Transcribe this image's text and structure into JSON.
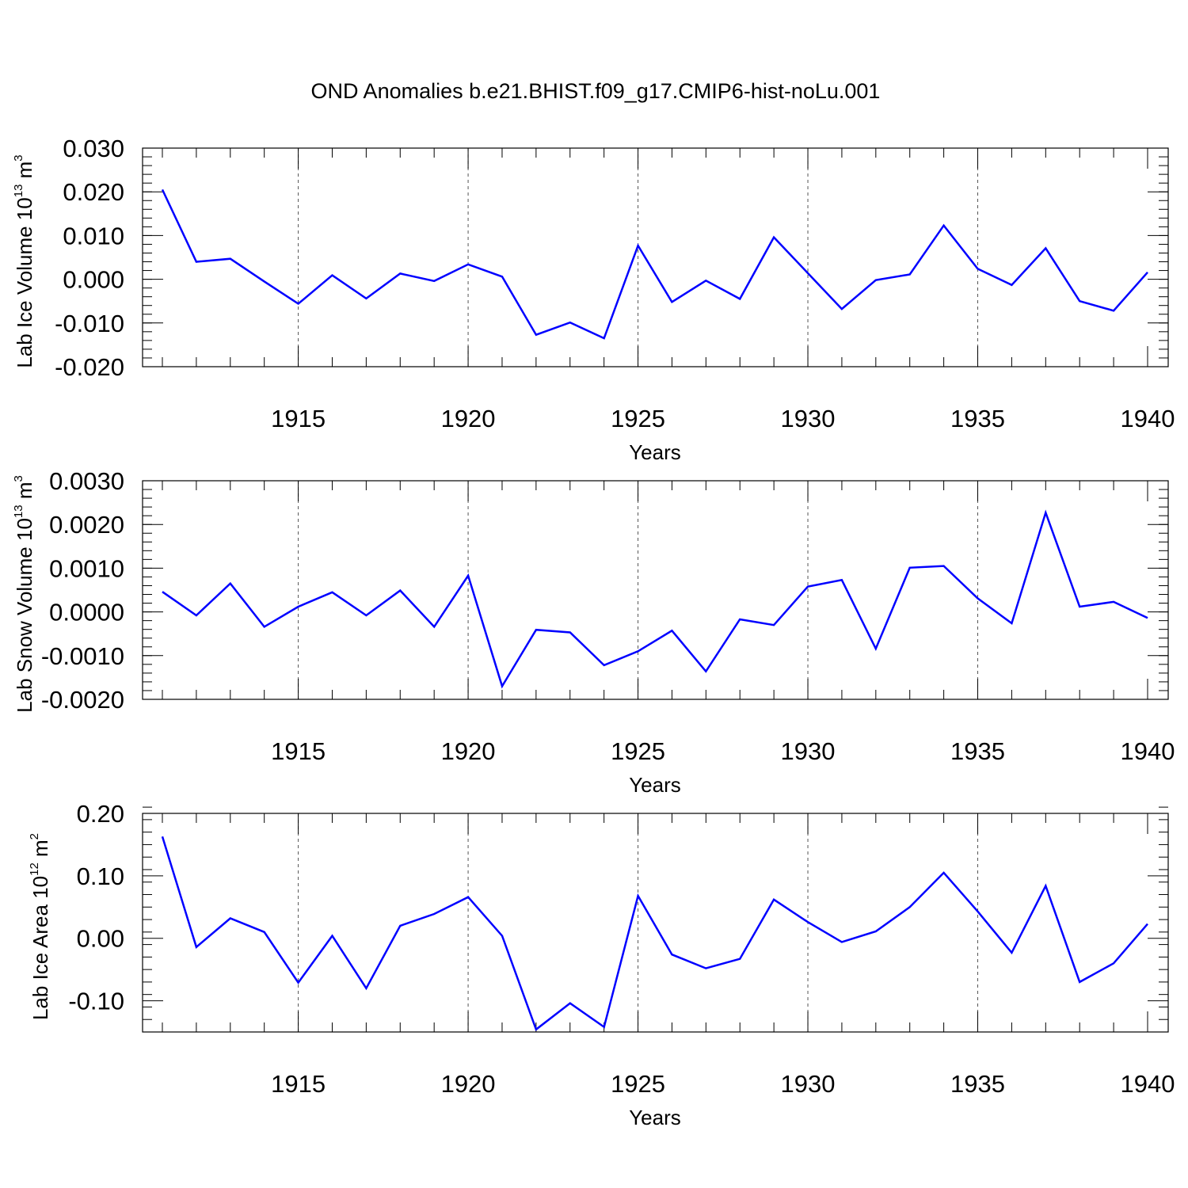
{
  "title": "OND Anomalies b.e21.BHIST.f09_g17.CMIP6-hist-noLu.001",
  "colors": {
    "series": "#0000ff",
    "grid": "#555555",
    "axis": "#000000"
  },
  "chart_data": [
    {
      "type": "line",
      "xlabel": "Years",
      "ylabel": {
        "prefix": "Lab Ice Volume 10",
        "exp": "13",
        "unit": " m",
        "unit_exp": "3"
      },
      "xlim": [
        1911,
        1940
      ],
      "ylim": [
        -0.02,
        0.03
      ],
      "x_ticks": [
        1915,
        1920,
        1925,
        1930,
        1935,
        1940
      ],
      "y_ticks": [
        -0.02,
        -0.01,
        0.0,
        0.01,
        0.02,
        0.03
      ],
      "y_tick_labels": [
        "-0.020",
        "-0.010",
        "0.000",
        "0.010",
        "0.020",
        "0.030"
      ],
      "y_minor_step": 0.002,
      "grid_x": true,
      "x": [
        1911,
        1912,
        1913,
        1914,
        1915,
        1916,
        1917,
        1918,
        1919,
        1920,
        1921,
        1922,
        1923,
        1924,
        1925,
        1926,
        1927,
        1928,
        1929,
        1930,
        1931,
        1932,
        1933,
        1934,
        1935,
        1936,
        1937,
        1938,
        1939,
        1940
      ],
      "values": [
        0.0205,
        0.004,
        0.0047,
        -0.0005,
        -0.0056,
        0.0009,
        -0.0044,
        0.0013,
        -0.0004,
        0.0034,
        0.0006,
        -0.0127,
        -0.0099,
        -0.0135,
        0.0077,
        -0.0052,
        -0.0003,
        -0.0045,
        0.0096,
        0.0014,
        -0.0068,
        -0.0002,
        0.0011,
        0.0123,
        0.0024,
        -0.0013,
        0.0071,
        -0.005,
        -0.0072,
        0.0016
      ]
    },
    {
      "type": "line",
      "xlabel": "Years",
      "ylabel": {
        "prefix": "Lab Snow Volume 10",
        "exp": "13",
        "unit": " m",
        "unit_exp": "3"
      },
      "xlim": [
        1911,
        1940
      ],
      "ylim": [
        -0.002,
        0.003
      ],
      "x_ticks": [
        1915,
        1920,
        1925,
        1930,
        1935,
        1940
      ],
      "y_ticks": [
        -0.002,
        -0.001,
        0.0,
        0.001,
        0.002,
        0.003
      ],
      "y_tick_labels": [
        "-0.0020",
        "-0.0010",
        "0.0000",
        "0.0010",
        "0.0020",
        "0.0030"
      ],
      "y_minor_step": 0.0002,
      "grid_x": true,
      "x": [
        1911,
        1912,
        1913,
        1914,
        1915,
        1916,
        1917,
        1918,
        1919,
        1920,
        1921,
        1922,
        1923,
        1924,
        1925,
        1926,
        1927,
        1928,
        1929,
        1930,
        1931,
        1932,
        1933,
        1934,
        1935,
        1936,
        1937,
        1938,
        1939,
        1940
      ],
      "values": [
        0.00046,
        -8e-05,
        0.00065,
        -0.00034,
        0.00012,
        0.00045,
        -8e-05,
        0.00049,
        -0.00034,
        0.00083,
        -0.0017,
        -0.00041,
        -0.00047,
        -0.00122,
        -0.0009,
        -0.00043,
        -0.00136,
        -0.00017,
        -0.0003,
        0.00058,
        0.00073,
        -0.00084,
        0.00101,
        0.00105,
        0.00031,
        -0.00026,
        0.00227,
        0.00012,
        0.00023,
        -0.00014
      ]
    },
    {
      "type": "line",
      "xlabel": "Years",
      "ylabel": {
        "prefix": "Lab Ice Area 10",
        "exp": "12",
        "unit": " m",
        "unit_exp": "2"
      },
      "xlim": [
        1911,
        1940
      ],
      "ylim": [
        -0.15,
        0.2
      ],
      "x_ticks": [
        1915,
        1920,
        1925,
        1930,
        1935,
        1940
      ],
      "y_ticks": [
        -0.1,
        0.0,
        0.1,
        0.2
      ],
      "y_tick_labels": [
        "-0.10",
        "0.00",
        "0.10",
        "0.20"
      ],
      "y_minor_step": 0.02,
      "grid_x": true,
      "x": [
        1911,
        1912,
        1913,
        1914,
        1915,
        1916,
        1917,
        1918,
        1919,
        1920,
        1921,
        1922,
        1923,
        1924,
        1925,
        1926,
        1927,
        1928,
        1929,
        1930,
        1931,
        1932,
        1933,
        1934,
        1935,
        1936,
        1937,
        1938,
        1939,
        1940
      ],
      "values": [
        0.163,
        -0.014,
        0.032,
        0.01,
        -0.071,
        0.004,
        -0.08,
        0.02,
        0.039,
        0.066,
        0.004,
        -0.146,
        -0.104,
        -0.142,
        0.068,
        -0.026,
        -0.048,
        -0.033,
        0.062,
        0.026,
        -0.006,
        0.011,
        0.05,
        0.105,
        0.043,
        -0.023,
        0.084,
        -0.07,
        -0.04,
        0.023
      ]
    }
  ]
}
